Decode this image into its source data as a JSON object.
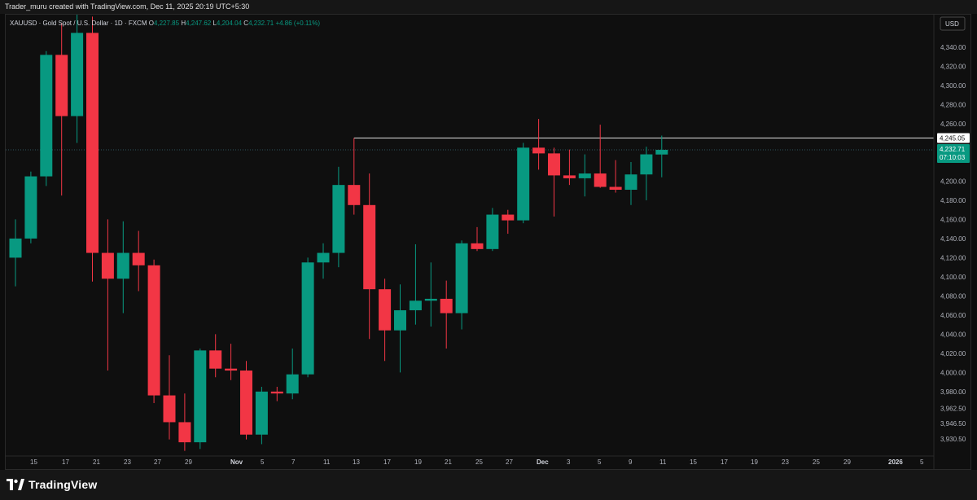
{
  "header": {
    "attribution": "Trader_muru created with TradingView.com, Dec 11, 2025 20:19 UTC+5:30"
  },
  "legend": {
    "symbol": "XAUUSD · Gold Spot / U.S. Dollar · 1D · FXCM",
    "o_label": "O",
    "o_value": "4,227.85",
    "h_label": "H",
    "h_value": "4,247.62",
    "l_label": "L",
    "l_value": "4,204.04",
    "c_label": "C",
    "c_value": "4,232.71",
    "change": "+4.86 (+0.11%)"
  },
  "currency": "USD",
  "price_labels": {
    "level": "4,245.05",
    "current": "4,232.71",
    "countdown": "07:10:03"
  },
  "footer": {
    "brand": "TradingView"
  },
  "colors": {
    "up": "#089981",
    "down": "#f23645",
    "background": "#0f0f0f",
    "axis_text": "#b2b5be",
    "level_line": "#e0e0e0"
  },
  "chart_data": {
    "type": "candlestick",
    "symbol": "XAUUSD",
    "timeframe": "1D",
    "ylim": [
      3920,
      4360
    ],
    "y_ticks": [
      {
        "value": 4340,
        "label": "4,340.00"
      },
      {
        "value": 4320,
        "label": "4,320.00"
      },
      {
        "value": 4300,
        "label": "4,300.00"
      },
      {
        "value": 4280,
        "label": "4,280.00"
      },
      {
        "value": 4260,
        "label": "4,260.00"
      },
      {
        "value": 4200,
        "label": "4,200.00"
      },
      {
        "value": 4180,
        "label": "4,180.00"
      },
      {
        "value": 4160,
        "label": "4,160.00"
      },
      {
        "value": 4140,
        "label": "4,140.00"
      },
      {
        "value": 4120,
        "label": "4,120.00"
      },
      {
        "value": 4100,
        "label": "4,100.00"
      },
      {
        "value": 4080,
        "label": "4,080.00"
      },
      {
        "value": 4060,
        "label": "4,060.00"
      },
      {
        "value": 4040,
        "label": "4,040.00"
      },
      {
        "value": 4020,
        "label": "4,020.00"
      },
      {
        "value": 4000,
        "label": "4,000.00"
      },
      {
        "value": 3980,
        "label": "3,980.00"
      },
      {
        "value": 3962.5,
        "label": "3,962.50"
      },
      {
        "value": 3946.5,
        "label": "3,946.50"
      },
      {
        "value": 3930.5,
        "label": "3,930.50"
      }
    ],
    "x_ticks": [
      "15",
      "17",
      "21",
      "23",
      "27",
      "29",
      "Nov",
      "5",
      "7",
      "11",
      "13",
      "17",
      "19",
      "21",
      "25",
      "27",
      "Dec",
      "3",
      "5",
      "9",
      "11",
      "15",
      "17",
      "19",
      "23",
      "25",
      "29",
      "2026",
      "5"
    ],
    "horizontal_level": 4245.05,
    "last_price": 4232.71,
    "candles": [
      {
        "o": 4120,
        "h": 4160,
        "l": 4090,
        "c": 4140
      },
      {
        "o": 4140,
        "h": 4210,
        "l": 4135,
        "c": 4205
      },
      {
        "o": 4205,
        "h": 4336,
        "l": 4195,
        "c": 4332
      },
      {
        "o": 4332,
        "h": 4365,
        "l": 4185,
        "c": 4268
      },
      {
        "o": 4268,
        "h": 4375,
        "l": 4240,
        "c": 4355
      },
      {
        "o": 4355,
        "h": 4372,
        "l": 4095,
        "c": 4125
      },
      {
        "o": 4125,
        "h": 4160,
        "l": 4002,
        "c": 4098
      },
      {
        "o": 4098,
        "h": 4158,
        "l": 4062,
        "c": 4125
      },
      {
        "o": 4125,
        "h": 4148,
        "l": 4085,
        "c": 4112
      },
      {
        "o": 4112,
        "h": 4118,
        "l": 3968,
        "c": 3976
      },
      {
        "o": 3976,
        "h": 4018,
        "l": 3930,
        "c": 3948
      },
      {
        "o": 3948,
        "h": 3978,
        "l": 3918,
        "c": 3927
      },
      {
        "o": 3927,
        "h": 4025,
        "l": 3920,
        "c": 4023
      },
      {
        "o": 4023,
        "h": 4040,
        "l": 3995,
        "c": 4004
      },
      {
        "o": 4004,
        "h": 4030,
        "l": 3992,
        "c": 4002
      },
      {
        "o": 4002,
        "h": 4012,
        "l": 3930,
        "c": 3935
      },
      {
        "o": 3935,
        "h": 3985,
        "l": 3925,
        "c": 3980
      },
      {
        "o": 3980,
        "h": 3985,
        "l": 3970,
        "c": 3978
      },
      {
        "o": 3978,
        "h": 4025,
        "l": 3972,
        "c": 3998
      },
      {
        "o": 3998,
        "h": 4120,
        "l": 3995,
        "c": 4115
      },
      {
        "o": 4115,
        "h": 4135,
        "l": 4098,
        "c": 4125
      },
      {
        "o": 4125,
        "h": 4215,
        "l": 4110,
        "c": 4196
      },
      {
        "o": 4196,
        "h": 4245,
        "l": 4165,
        "c": 4175
      },
      {
        "o": 4175,
        "h": 4208,
        "l": 4035,
        "c": 4087
      },
      {
        "o": 4087,
        "h": 4098,
        "l": 4012,
        "c": 4044
      },
      {
        "o": 4044,
        "h": 4092,
        "l": 4000,
        "c": 4065
      },
      {
        "o": 4065,
        "h": 4134,
        "l": 4050,
        "c": 4075
      },
      {
        "o": 4075,
        "h": 4115,
        "l": 4048,
        "c": 4077
      },
      {
        "o": 4077,
        "h": 4096,
        "l": 4025,
        "c": 4062
      },
      {
        "o": 4062,
        "h": 4138,
        "l": 4045,
        "c": 4135
      },
      {
        "o": 4135,
        "h": 4152,
        "l": 4127,
        "c": 4129
      },
      {
        "o": 4129,
        "h": 4172,
        "l": 4127,
        "c": 4165
      },
      {
        "o": 4165,
        "h": 4170,
        "l": 4145,
        "c": 4159
      },
      {
        "o": 4159,
        "h": 4240,
        "l": 4156,
        "c": 4235
      },
      {
        "o": 4235,
        "h": 4265,
        "l": 4212,
        "c": 4229
      },
      {
        "o": 4229,
        "h": 4235,
        "l": 4163,
        "c": 4206
      },
      {
        "o": 4206,
        "h": 4233,
        "l": 4196,
        "c": 4203
      },
      {
        "o": 4203,
        "h": 4228,
        "l": 4184,
        "c": 4208
      },
      {
        "o": 4208,
        "h": 4259,
        "l": 4193,
        "c": 4194
      },
      {
        "o": 4194,
        "h": 4222,
        "l": 4188,
        "c": 4191
      },
      {
        "o": 4191,
        "h": 4220,
        "l": 4175,
        "c": 4207
      },
      {
        "o": 4207,
        "h": 4236,
        "l": 4180,
        "c": 4228
      },
      {
        "o": 4227.85,
        "h": 4247.62,
        "l": 4204.04,
        "c": 4232.71
      }
    ]
  }
}
